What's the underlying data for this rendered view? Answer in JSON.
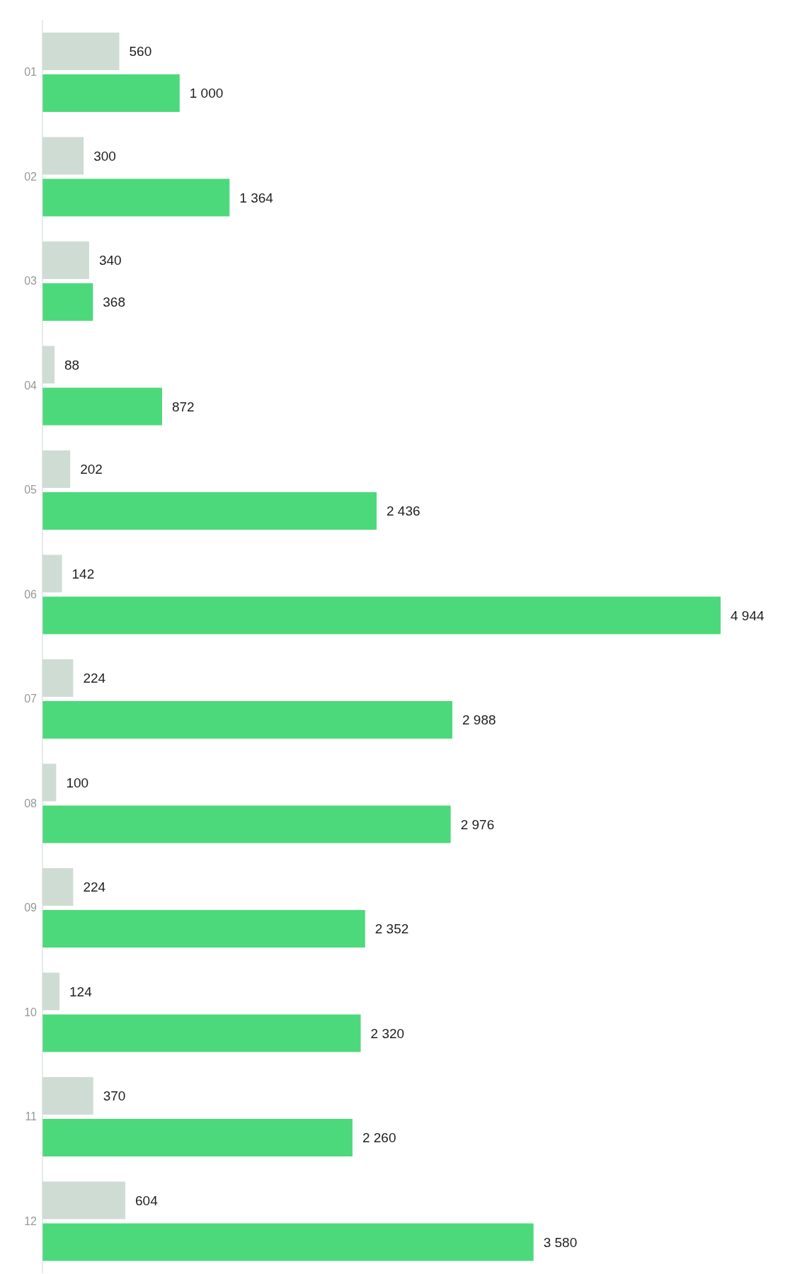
{
  "chart_data": {
    "type": "bar",
    "orientation": "horizontal",
    "categories": [
      "01",
      "02",
      "03",
      "04",
      "05",
      "06",
      "07",
      "08",
      "09",
      "10",
      "11",
      "12"
    ],
    "series": [
      {
        "color": "#cfdcd4",
        "values": [
          560,
          300,
          340,
          88,
          202,
          142,
          224,
          100,
          224,
          124,
          370,
          604
        ],
        "value_labels": [
          "560",
          "300",
          "340",
          "88",
          "202",
          "142",
          "224",
          "100",
          "224",
          "124",
          "370",
          "604"
        ]
      },
      {
        "color": "#4cd97b",
        "values": [
          1000,
          1364,
          368,
          872,
          2436,
          4944,
          2988,
          2976,
          2352,
          2320,
          2260,
          3580
        ],
        "value_labels": [
          "1 000",
          "1 364",
          "368",
          "872",
          "2 436",
          "4 944",
          "2 988",
          "2 976",
          "2 352",
          "2 320",
          "2 260",
          "3 580"
        ]
      }
    ]
  }
}
